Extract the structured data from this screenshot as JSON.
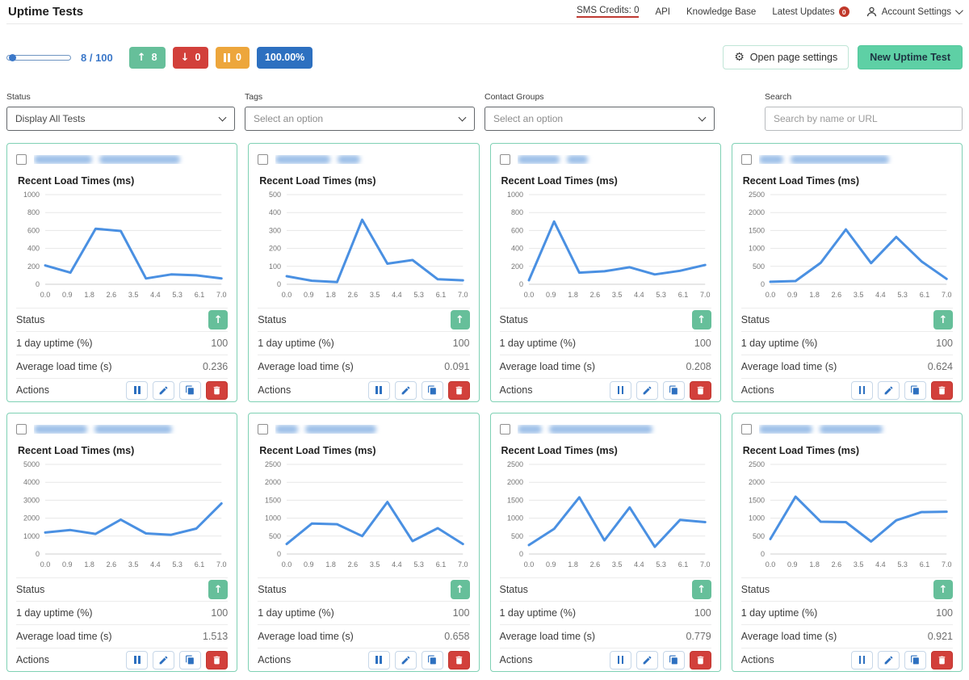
{
  "header": {
    "title": "Uptime Tests",
    "nav": {
      "sms_credits": "SMS Credits: 0",
      "api": "API",
      "knowledge_base": "Knowledge Base",
      "latest_updates": "Latest Updates",
      "latest_updates_badge": "0",
      "account_settings": "Account Settings"
    }
  },
  "toolbar": {
    "usage": "8 / 100",
    "up_count": "8",
    "down_count": "0",
    "paused_count": "0",
    "uptime_percent": "100.00%",
    "open_page_settings": "Open page settings",
    "new_uptime_test": "New Uptime Test"
  },
  "filters": {
    "status_label": "Status",
    "status_value": "Display All Tests",
    "tags_label": "Tags",
    "tags_placeholder": "Select an option",
    "contact_groups_label": "Contact Groups",
    "contact_groups_placeholder": "Select an option",
    "search_label": "Search",
    "search_placeholder": "Search by name or URL"
  },
  "card_labels": {
    "chart_title": "Recent Load Times (ms)",
    "status": "Status",
    "uptime": "1 day uptime (%)",
    "avg_load": "Average load time (s)",
    "actions": "Actions",
    "status_up_glyph": "↑"
  },
  "colors": {
    "accent_blue": "#2d70c0",
    "link_blue": "#3b78c9",
    "chart_line": "#4a90e2",
    "badge_green": "#66bf9a",
    "badge_red": "#d2403b",
    "badge_orange": "#eda63c",
    "badge_blue": "#2d70c0",
    "card_border": "#7fd1b4",
    "new_test_green": "#5ed0a5",
    "grid_line": "#e7e7e7"
  },
  "tests": [
    {
      "uptime_1d": "100",
      "avg_load_s": "0.236",
      "name_redacted_segments": [
        72,
        100
      ]
    },
    {
      "uptime_1d": "100",
      "avg_load_s": "0.091",
      "name_redacted_segments": [
        68,
        28
      ]
    },
    {
      "uptime_1d": "100",
      "avg_load_s": "0.208",
      "name_redacted_segments": [
        52,
        26
      ]
    },
    {
      "uptime_1d": "100",
      "avg_load_s": "0.624",
      "name_redacted_segments": [
        30,
        122
      ]
    },
    {
      "uptime_1d": "100",
      "avg_load_s": "1.513",
      "name_redacted_segments": [
        66,
        96
      ]
    },
    {
      "uptime_1d": "100",
      "avg_load_s": "0.658",
      "name_redacted_segments": [
        28,
        88
      ]
    },
    {
      "uptime_1d": "100",
      "avg_load_s": "0.779",
      "name_redacted_segments": [
        30,
        128
      ]
    },
    {
      "uptime_1d": "100",
      "avg_load_s": "0.921",
      "name_redacted_segments": [
        66,
        78
      ]
    }
  ],
  "chart_data": [
    {
      "type": "line",
      "title": "Recent Load Times (ms)",
      "x": [
        0,
        1,
        2,
        3,
        4,
        5,
        6,
        7
      ],
      "x_ticks": [
        "0.0",
        "0.9",
        "1.8",
        "2.6",
        "3.5",
        "4.4",
        "5.3",
        "6.1",
        "7.0"
      ],
      "y_ticks": [
        0,
        200,
        400,
        600,
        800,
        1000
      ],
      "ylim": [
        0,
        1000
      ],
      "values": [
        210,
        130,
        620,
        595,
        65,
        110,
        100,
        65
      ]
    },
    {
      "type": "line",
      "title": "Recent Load Times (ms)",
      "x": [
        0,
        1,
        2,
        3,
        4,
        5,
        6,
        7
      ],
      "x_ticks": [
        "0.0",
        "0.9",
        "1.8",
        "2.6",
        "3.5",
        "4.4",
        "5.3",
        "6.1",
        "7.0"
      ],
      "y_ticks": [
        0,
        100,
        200,
        300,
        400,
        500
      ],
      "ylim": [
        0,
        500
      ],
      "values": [
        45,
        20,
        12,
        360,
        115,
        135,
        28,
        22
      ]
    },
    {
      "type": "line",
      "title": "Recent Load Times (ms)",
      "x": [
        0,
        1,
        2,
        3,
        4,
        5,
        6,
        7
      ],
      "x_ticks": [
        "0.0",
        "0.9",
        "1.8",
        "2.6",
        "3.5",
        "4.4",
        "5.3",
        "6.1",
        "7.0"
      ],
      "y_ticks": [
        0,
        200,
        400,
        600,
        800,
        1000
      ],
      "ylim": [
        0,
        1000
      ],
      "values": [
        45,
        700,
        130,
        145,
        190,
        110,
        150,
        215
      ]
    },
    {
      "type": "line",
      "title": "Recent Load Times (ms)",
      "x": [
        0,
        1,
        2,
        3,
        4,
        5,
        6,
        7
      ],
      "x_ticks": [
        "0.0",
        "0.9",
        "1.8",
        "2.6",
        "3.5",
        "4.4",
        "5.3",
        "6.1",
        "7.0"
      ],
      "y_ticks": [
        0,
        500,
        1000,
        1500,
        2000,
        2500
      ],
      "ylim": [
        0,
        2500
      ],
      "values": [
        70,
        90,
        600,
        1530,
        590,
        1320,
        640,
        150
      ]
    },
    {
      "type": "line",
      "title": "Recent Load Times (ms)",
      "x": [
        0,
        1,
        2,
        3,
        4,
        5,
        6,
        7
      ],
      "x_ticks": [
        "0.0",
        "0.9",
        "1.8",
        "2.6",
        "3.5",
        "4.4",
        "5.3",
        "6.1",
        "7.0"
      ],
      "y_ticks": [
        0,
        1000,
        2000,
        3000,
        4000,
        5000
      ],
      "ylim": [
        0,
        5000
      ],
      "values": [
        1200,
        1340,
        1120,
        1920,
        1150,
        1070,
        1420,
        2820
      ]
    },
    {
      "type": "line",
      "title": "Recent Load Times (ms)",
      "x": [
        0,
        1,
        2,
        3,
        4,
        5,
        6,
        7
      ],
      "x_ticks": [
        "0.0",
        "0.9",
        "1.8",
        "2.6",
        "3.5",
        "4.4",
        "5.3",
        "6.1",
        "7.0"
      ],
      "y_ticks": [
        0,
        500,
        1000,
        1500,
        2000,
        2500
      ],
      "ylim": [
        0,
        2500
      ],
      "values": [
        280,
        850,
        830,
        500,
        1450,
        360,
        720,
        280
      ]
    },
    {
      "type": "line",
      "title": "Recent Load Times (ms)",
      "x": [
        0,
        1,
        2,
        3,
        4,
        5,
        6,
        7
      ],
      "x_ticks": [
        "0.0",
        "0.9",
        "1.8",
        "2.6",
        "3.5",
        "4.4",
        "5.3",
        "6.1",
        "7.0"
      ],
      "y_ticks": [
        0,
        500,
        1000,
        1500,
        2000,
        2500
      ],
      "ylim": [
        0,
        2500
      ],
      "values": [
        250,
        700,
        1580,
        380,
        1300,
        200,
        950,
        890
      ]
    },
    {
      "type": "line",
      "title": "Recent Load Times (ms)",
      "x": [
        0,
        1,
        2,
        3,
        4,
        5,
        6,
        7
      ],
      "x_ticks": [
        "0.0",
        "0.9",
        "1.8",
        "2.6",
        "3.5",
        "4.4",
        "5.3",
        "6.1",
        "7.0"
      ],
      "y_ticks": [
        0,
        500,
        1000,
        1500,
        2000,
        2500
      ],
      "ylim": [
        0,
        2500
      ],
      "values": [
        420,
        1600,
        900,
        890,
        350,
        940,
        1170,
        1180
      ]
    }
  ]
}
